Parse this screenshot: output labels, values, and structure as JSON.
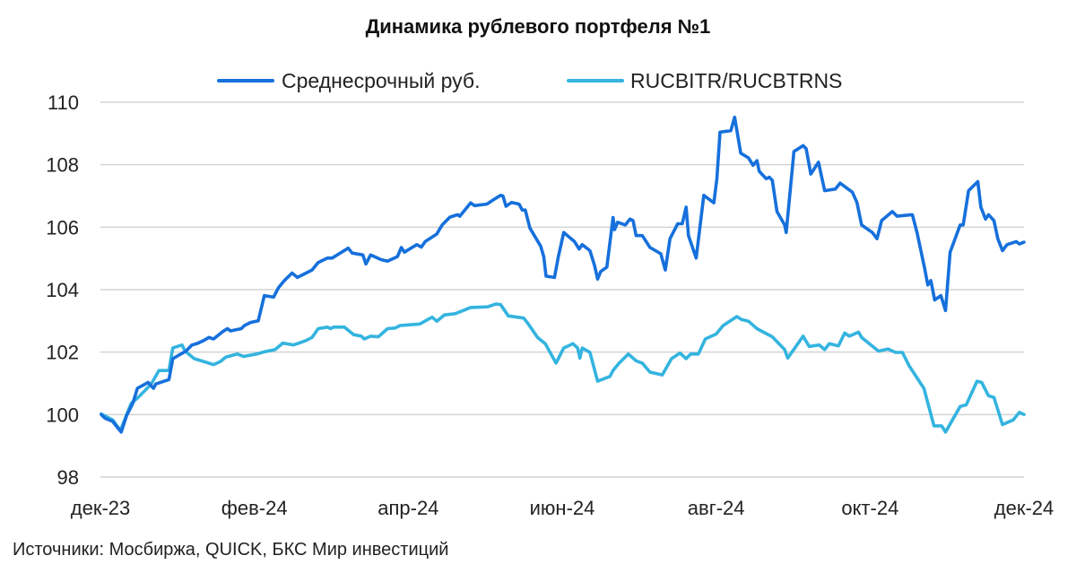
{
  "chart_data": {
    "type": "line",
    "title": "Динамика рублевого портфеля №1",
    "xlabel": "",
    "ylabel": "",
    "ylim": [
      98,
      110
    ],
    "xlim": [
      0,
      12
    ],
    "grid": true,
    "legend_position": "top",
    "x_unit": "months since dec-23",
    "x_ticks": [
      {
        "value": 0,
        "label": "дек-23"
      },
      {
        "value": 2,
        "label": "фев-24"
      },
      {
        "value": 4,
        "label": "апр-24"
      },
      {
        "value": 6,
        "label": "июн-24"
      },
      {
        "value": 8,
        "label": "авг-24"
      },
      {
        "value": 10,
        "label": "окт-24"
      },
      {
        "value": 12,
        "label": "дек-24"
      }
    ],
    "y_ticks": [
      {
        "value": 98,
        "label": "98"
      },
      {
        "value": 100,
        "label": "100"
      },
      {
        "value": 102,
        "label": "102"
      },
      {
        "value": 104,
        "label": "104"
      },
      {
        "value": 106,
        "label": "106"
      },
      {
        "value": 108,
        "label": "108"
      },
      {
        "value": 110,
        "label": "110"
      }
    ],
    "series": [
      {
        "name": "Среднесрочный руб.",
        "color": "#1670dc",
        "points": [
          [
            0.01,
            100.0
          ],
          [
            0.06,
            99.88
          ],
          [
            0.16,
            99.78
          ],
          [
            0.22,
            99.59
          ],
          [
            0.27,
            99.44
          ],
          [
            0.34,
            99.97
          ],
          [
            0.42,
            100.36
          ],
          [
            0.48,
            100.84
          ],
          [
            0.62,
            101.03
          ],
          [
            0.69,
            100.84
          ],
          [
            0.72,
            100.98
          ],
          [
            0.89,
            101.12
          ],
          [
            0.94,
            101.79
          ],
          [
            1.11,
            102.03
          ],
          [
            1.19,
            102.23
          ],
          [
            1.25,
            102.27
          ],
          [
            1.34,
            102.37
          ],
          [
            1.41,
            102.47
          ],
          [
            1.47,
            102.42
          ],
          [
            1.59,
            102.66
          ],
          [
            1.65,
            102.75
          ],
          [
            1.69,
            102.68
          ],
          [
            1.83,
            102.75
          ],
          [
            1.87,
            102.85
          ],
          [
            1.95,
            102.95
          ],
          [
            2.05,
            103.0
          ],
          [
            2.13,
            103.81
          ],
          [
            2.25,
            103.76
          ],
          [
            2.31,
            104.05
          ],
          [
            2.39,
            104.29
          ],
          [
            2.49,
            104.53
          ],
          [
            2.56,
            104.39
          ],
          [
            2.75,
            104.63
          ],
          [
            2.83,
            104.87
          ],
          [
            2.95,
            105.01
          ],
          [
            3.01,
            105.01
          ],
          [
            3.22,
            105.33
          ],
          [
            3.27,
            105.17
          ],
          [
            3.41,
            105.11
          ],
          [
            3.45,
            104.82
          ],
          [
            3.51,
            105.11
          ],
          [
            3.65,
            104.96
          ],
          [
            3.73,
            104.91
          ],
          [
            3.86,
            105.06
          ],
          [
            3.91,
            105.35
          ],
          [
            3.95,
            105.2
          ],
          [
            4.11,
            105.44
          ],
          [
            4.17,
            105.36
          ],
          [
            4.22,
            105.54
          ],
          [
            4.37,
            105.78
          ],
          [
            4.44,
            106.07
          ],
          [
            4.54,
            106.32
          ],
          [
            4.64,
            106.4
          ],
          [
            4.67,
            106.35
          ],
          [
            4.81,
            106.78
          ],
          [
            4.86,
            106.69
          ],
          [
            5.02,
            106.74
          ],
          [
            5.12,
            106.9
          ],
          [
            5.2,
            107.02
          ],
          [
            5.23,
            107.0
          ],
          [
            5.27,
            106.67
          ],
          [
            5.34,
            106.79
          ],
          [
            5.44,
            106.74
          ],
          [
            5.48,
            106.55
          ],
          [
            5.52,
            106.55
          ],
          [
            5.58,
            105.97
          ],
          [
            5.72,
            105.39
          ],
          [
            5.76,
            105.06
          ],
          [
            5.79,
            104.43
          ],
          [
            5.9,
            104.39
          ],
          [
            5.95,
            105.06
          ],
          [
            6.02,
            105.83
          ],
          [
            6.16,
            105.54
          ],
          [
            6.22,
            105.3
          ],
          [
            6.26,
            105.44
          ],
          [
            6.36,
            105.25
          ],
          [
            6.42,
            104.77
          ],
          [
            6.46,
            104.34
          ],
          [
            6.5,
            104.58
          ],
          [
            6.58,
            104.72
          ],
          [
            6.66,
            106.31
          ],
          [
            6.68,
            105.92
          ],
          [
            6.72,
            106.16
          ],
          [
            6.82,
            106.07
          ],
          [
            6.88,
            106.26
          ],
          [
            6.92,
            106.21
          ],
          [
            6.96,
            105.73
          ],
          [
            7.04,
            105.73
          ],
          [
            7.14,
            105.35
          ],
          [
            7.28,
            105.15
          ],
          [
            7.34,
            104.63
          ],
          [
            7.4,
            105.63
          ],
          [
            7.5,
            106.11
          ],
          [
            7.56,
            106.11
          ],
          [
            7.61,
            106.64
          ],
          [
            7.64,
            105.73
          ],
          [
            7.74,
            105.01
          ],
          [
            7.84,
            107.02
          ],
          [
            7.97,
            106.78
          ],
          [
            8.01,
            107.55
          ],
          [
            8.05,
            109.04
          ],
          [
            8.19,
            109.09
          ],
          [
            8.24,
            109.52
          ],
          [
            8.32,
            108.37
          ],
          [
            8.42,
            108.22
          ],
          [
            8.48,
            107.98
          ],
          [
            8.53,
            108.13
          ],
          [
            8.56,
            107.79
          ],
          [
            8.65,
            107.55
          ],
          [
            8.69,
            107.6
          ],
          [
            8.73,
            107.5
          ],
          [
            8.79,
            106.5
          ],
          [
            8.89,
            106.07
          ],
          [
            8.91,
            105.83
          ],
          [
            8.97,
            107.36
          ],
          [
            9.01,
            108.42
          ],
          [
            9.13,
            108.61
          ],
          [
            9.17,
            108.51
          ],
          [
            9.23,
            107.7
          ],
          [
            9.33,
            108.08
          ],
          [
            9.41,
            107.17
          ],
          [
            9.55,
            107.22
          ],
          [
            9.61,
            107.41
          ],
          [
            9.77,
            107.12
          ],
          [
            9.83,
            106.79
          ],
          [
            9.89,
            106.07
          ],
          [
            10.03,
            105.83
          ],
          [
            10.09,
            105.63
          ],
          [
            10.15,
            106.21
          ],
          [
            10.29,
            106.5
          ],
          [
            10.35,
            106.35
          ],
          [
            10.55,
            106.4
          ],
          [
            10.61,
            105.83
          ],
          [
            10.71,
            104.67
          ],
          [
            10.75,
            104.15
          ],
          [
            10.79,
            104.29
          ],
          [
            10.84,
            103.67
          ],
          [
            10.92,
            103.81
          ],
          [
            10.98,
            103.33
          ],
          [
            11.04,
            105.2
          ],
          [
            11.17,
            106.07
          ],
          [
            11.21,
            106.07
          ],
          [
            11.28,
            107.17
          ],
          [
            11.4,
            107.46
          ],
          [
            11.44,
            106.64
          ],
          [
            11.5,
            106.26
          ],
          [
            11.54,
            106.4
          ],
          [
            11.61,
            106.21
          ],
          [
            11.66,
            105.63
          ],
          [
            11.72,
            105.25
          ],
          [
            11.78,
            105.44
          ],
          [
            11.9,
            105.54
          ],
          [
            11.94,
            105.46
          ],
          [
            12.0,
            105.52
          ]
        ]
      },
      {
        "name": "RUCBITR/RUCBTRNS",
        "color": "#34b4df",
        "points": [
          [
            0.01,
            100.02
          ],
          [
            0.16,
            99.83
          ],
          [
            0.26,
            99.49
          ],
          [
            0.4,
            100.36
          ],
          [
            0.49,
            100.55
          ],
          [
            0.66,
            100.98
          ],
          [
            0.76,
            101.41
          ],
          [
            0.89,
            101.41
          ],
          [
            0.94,
            102.13
          ],
          [
            1.06,
            102.23
          ],
          [
            1.1,
            102.03
          ],
          [
            1.22,
            101.79
          ],
          [
            1.34,
            101.7
          ],
          [
            1.47,
            101.6
          ],
          [
            1.56,
            101.7
          ],
          [
            1.63,
            101.84
          ],
          [
            1.78,
            101.94
          ],
          [
            1.86,
            101.86
          ],
          [
            2.03,
            101.94
          ],
          [
            2.13,
            102.01
          ],
          [
            2.27,
            102.08
          ],
          [
            2.37,
            102.29
          ],
          [
            2.51,
            102.23
          ],
          [
            2.67,
            102.37
          ],
          [
            2.75,
            102.47
          ],
          [
            2.83,
            102.75
          ],
          [
            2.95,
            102.8
          ],
          [
            2.99,
            102.75
          ],
          [
            3.03,
            102.8
          ],
          [
            3.17,
            102.8
          ],
          [
            3.29,
            102.56
          ],
          [
            3.39,
            102.51
          ],
          [
            3.43,
            102.42
          ],
          [
            3.51,
            102.51
          ],
          [
            3.61,
            102.49
          ],
          [
            3.73,
            102.75
          ],
          [
            3.83,
            102.77
          ],
          [
            3.89,
            102.85
          ],
          [
            4.15,
            102.9
          ],
          [
            4.31,
            103.12
          ],
          [
            4.37,
            102.99
          ],
          [
            4.47,
            103.19
          ],
          [
            4.61,
            103.23
          ],
          [
            4.81,
            103.43
          ],
          [
            5.03,
            103.45
          ],
          [
            5.14,
            103.54
          ],
          [
            5.2,
            103.52
          ],
          [
            5.3,
            103.16
          ],
          [
            5.5,
            103.09
          ],
          [
            5.56,
            102.9
          ],
          [
            5.68,
            102.47
          ],
          [
            5.78,
            102.27
          ],
          [
            5.92,
            101.65
          ],
          [
            6.02,
            102.13
          ],
          [
            6.14,
            102.27
          ],
          [
            6.2,
            102.13
          ],
          [
            6.23,
            101.81
          ],
          [
            6.26,
            102.13
          ],
          [
            6.36,
            101.99
          ],
          [
            6.46,
            101.07
          ],
          [
            6.62,
            101.22
          ],
          [
            6.66,
            101.41
          ],
          [
            6.74,
            101.65
          ],
          [
            6.86,
            101.94
          ],
          [
            6.96,
            101.72
          ],
          [
            7.04,
            101.65
          ],
          [
            7.14,
            101.36
          ],
          [
            7.3,
            101.27
          ],
          [
            7.42,
            101.79
          ],
          [
            7.53,
            101.97
          ],
          [
            7.61,
            101.79
          ],
          [
            7.67,
            101.94
          ],
          [
            7.77,
            101.94
          ],
          [
            7.86,
            102.42
          ],
          [
            8.0,
            102.58
          ],
          [
            8.09,
            102.85
          ],
          [
            8.27,
            103.14
          ],
          [
            8.33,
            103.04
          ],
          [
            8.42,
            102.99
          ],
          [
            8.53,
            102.75
          ],
          [
            8.73,
            102.49
          ],
          [
            8.89,
            102.08
          ],
          [
            8.93,
            101.81
          ],
          [
            9.13,
            102.51
          ],
          [
            9.21,
            102.18
          ],
          [
            9.34,
            102.23
          ],
          [
            9.41,
            102.08
          ],
          [
            9.47,
            102.27
          ],
          [
            9.59,
            102.2
          ],
          [
            9.67,
            102.61
          ],
          [
            9.73,
            102.51
          ],
          [
            9.85,
            102.64
          ],
          [
            9.89,
            102.47
          ],
          [
            10.11,
            102.03
          ],
          [
            10.23,
            102.1
          ],
          [
            10.33,
            101.99
          ],
          [
            10.42,
            101.99
          ],
          [
            10.51,
            101.55
          ],
          [
            10.7,
            100.84
          ],
          [
            10.83,
            99.64
          ],
          [
            10.93,
            99.64
          ],
          [
            10.98,
            99.44
          ],
          [
            11.17,
            100.26
          ],
          [
            11.25,
            100.31
          ],
          [
            11.39,
            101.07
          ],
          [
            11.45,
            101.03
          ],
          [
            11.54,
            100.6
          ],
          [
            11.61,
            100.55
          ],
          [
            11.72,
            99.68
          ],
          [
            11.86,
            99.83
          ],
          [
            11.94,
            100.07
          ],
          [
            12.0,
            100.0
          ]
        ]
      }
    ],
    "source": "Источники: Мосбиржа, QUICK, БКС Мир инвестиций"
  }
}
